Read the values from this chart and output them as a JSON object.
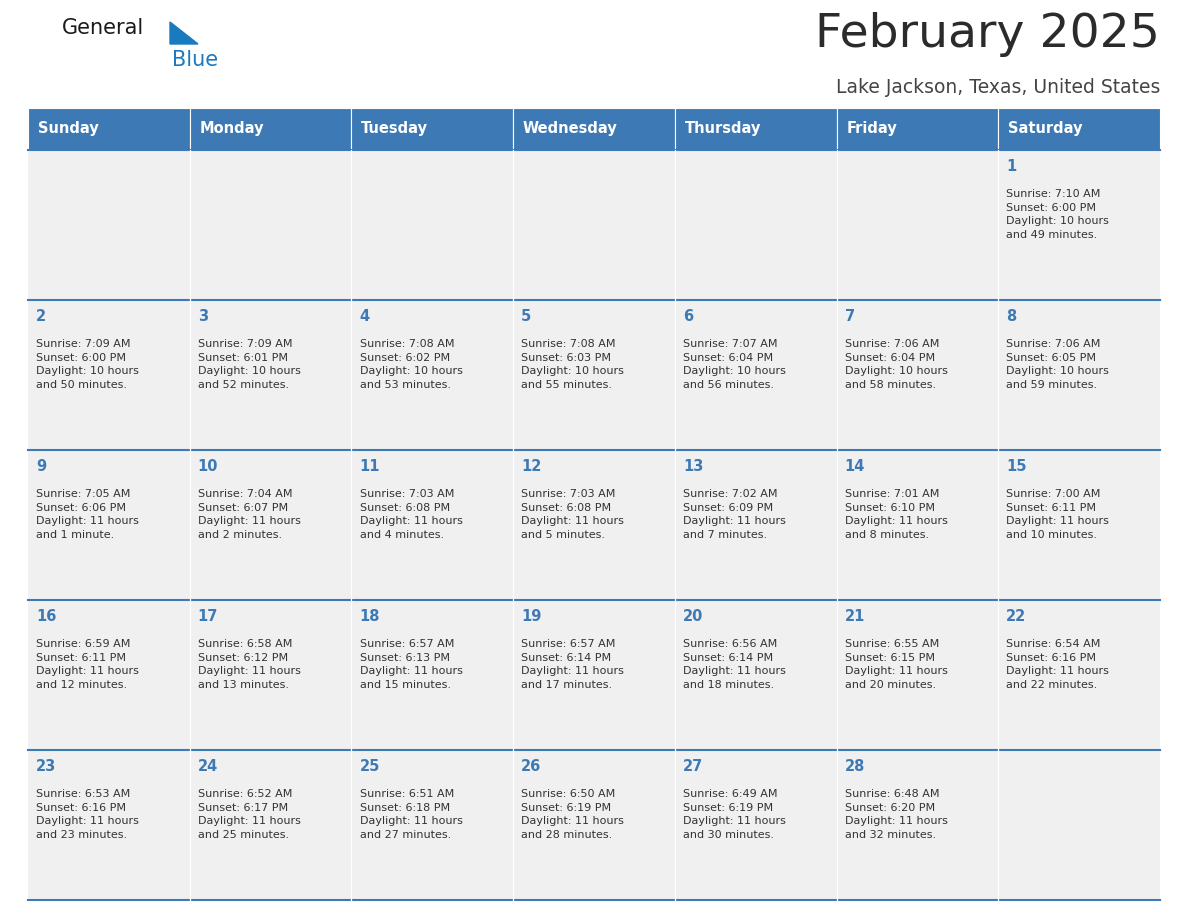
{
  "title": "February 2025",
  "subtitle": "Lake Jackson, Texas, United States",
  "header_bg_color": "#3d7ab5",
  "header_text_color": "#ffffff",
  "cell_bg_color": "#f0f0f0",
  "title_color": "#2b2b2b",
  "subtitle_color": "#444444",
  "day_num_color": "#3d7ab5",
  "cell_text_color": "#333333",
  "border_color": "#3d7ab5",
  "days_of_week": [
    "Sunday",
    "Monday",
    "Tuesday",
    "Wednesday",
    "Thursday",
    "Friday",
    "Saturday"
  ],
  "weeks": [
    [
      {
        "day": "",
        "info": ""
      },
      {
        "day": "",
        "info": ""
      },
      {
        "day": "",
        "info": ""
      },
      {
        "day": "",
        "info": ""
      },
      {
        "day": "",
        "info": ""
      },
      {
        "day": "",
        "info": ""
      },
      {
        "day": "1",
        "info": "Sunrise: 7:10 AM\nSunset: 6:00 PM\nDaylight: 10 hours\nand 49 minutes."
      }
    ],
    [
      {
        "day": "2",
        "info": "Sunrise: 7:09 AM\nSunset: 6:00 PM\nDaylight: 10 hours\nand 50 minutes."
      },
      {
        "day": "3",
        "info": "Sunrise: 7:09 AM\nSunset: 6:01 PM\nDaylight: 10 hours\nand 52 minutes."
      },
      {
        "day": "4",
        "info": "Sunrise: 7:08 AM\nSunset: 6:02 PM\nDaylight: 10 hours\nand 53 minutes."
      },
      {
        "day": "5",
        "info": "Sunrise: 7:08 AM\nSunset: 6:03 PM\nDaylight: 10 hours\nand 55 minutes."
      },
      {
        "day": "6",
        "info": "Sunrise: 7:07 AM\nSunset: 6:04 PM\nDaylight: 10 hours\nand 56 minutes."
      },
      {
        "day": "7",
        "info": "Sunrise: 7:06 AM\nSunset: 6:04 PM\nDaylight: 10 hours\nand 58 minutes."
      },
      {
        "day": "8",
        "info": "Sunrise: 7:06 AM\nSunset: 6:05 PM\nDaylight: 10 hours\nand 59 minutes."
      }
    ],
    [
      {
        "day": "9",
        "info": "Sunrise: 7:05 AM\nSunset: 6:06 PM\nDaylight: 11 hours\nand 1 minute."
      },
      {
        "day": "10",
        "info": "Sunrise: 7:04 AM\nSunset: 6:07 PM\nDaylight: 11 hours\nand 2 minutes."
      },
      {
        "day": "11",
        "info": "Sunrise: 7:03 AM\nSunset: 6:08 PM\nDaylight: 11 hours\nand 4 minutes."
      },
      {
        "day": "12",
        "info": "Sunrise: 7:03 AM\nSunset: 6:08 PM\nDaylight: 11 hours\nand 5 minutes."
      },
      {
        "day": "13",
        "info": "Sunrise: 7:02 AM\nSunset: 6:09 PM\nDaylight: 11 hours\nand 7 minutes."
      },
      {
        "day": "14",
        "info": "Sunrise: 7:01 AM\nSunset: 6:10 PM\nDaylight: 11 hours\nand 8 minutes."
      },
      {
        "day": "15",
        "info": "Sunrise: 7:00 AM\nSunset: 6:11 PM\nDaylight: 11 hours\nand 10 minutes."
      }
    ],
    [
      {
        "day": "16",
        "info": "Sunrise: 6:59 AM\nSunset: 6:11 PM\nDaylight: 11 hours\nand 12 minutes."
      },
      {
        "day": "17",
        "info": "Sunrise: 6:58 AM\nSunset: 6:12 PM\nDaylight: 11 hours\nand 13 minutes."
      },
      {
        "day": "18",
        "info": "Sunrise: 6:57 AM\nSunset: 6:13 PM\nDaylight: 11 hours\nand 15 minutes."
      },
      {
        "day": "19",
        "info": "Sunrise: 6:57 AM\nSunset: 6:14 PM\nDaylight: 11 hours\nand 17 minutes."
      },
      {
        "day": "20",
        "info": "Sunrise: 6:56 AM\nSunset: 6:14 PM\nDaylight: 11 hours\nand 18 minutes."
      },
      {
        "day": "21",
        "info": "Sunrise: 6:55 AM\nSunset: 6:15 PM\nDaylight: 11 hours\nand 20 minutes."
      },
      {
        "day": "22",
        "info": "Sunrise: 6:54 AM\nSunset: 6:16 PM\nDaylight: 11 hours\nand 22 minutes."
      }
    ],
    [
      {
        "day": "23",
        "info": "Sunrise: 6:53 AM\nSunset: 6:16 PM\nDaylight: 11 hours\nand 23 minutes."
      },
      {
        "day": "24",
        "info": "Sunrise: 6:52 AM\nSunset: 6:17 PM\nDaylight: 11 hours\nand 25 minutes."
      },
      {
        "day": "25",
        "info": "Sunrise: 6:51 AM\nSunset: 6:18 PM\nDaylight: 11 hours\nand 27 minutes."
      },
      {
        "day": "26",
        "info": "Sunrise: 6:50 AM\nSunset: 6:19 PM\nDaylight: 11 hours\nand 28 minutes."
      },
      {
        "day": "27",
        "info": "Sunrise: 6:49 AM\nSunset: 6:19 PM\nDaylight: 11 hours\nand 30 minutes."
      },
      {
        "day": "28",
        "info": "Sunrise: 6:48 AM\nSunset: 6:20 PM\nDaylight: 11 hours\nand 32 minutes."
      },
      {
        "day": "",
        "info": ""
      }
    ]
  ],
  "logo_general_color": "#1a1a1a",
  "logo_blue_color": "#1a7abf",
  "logo_triangle_color": "#1a7abf",
  "fig_width": 11.88,
  "fig_height": 9.18,
  "dpi": 100
}
